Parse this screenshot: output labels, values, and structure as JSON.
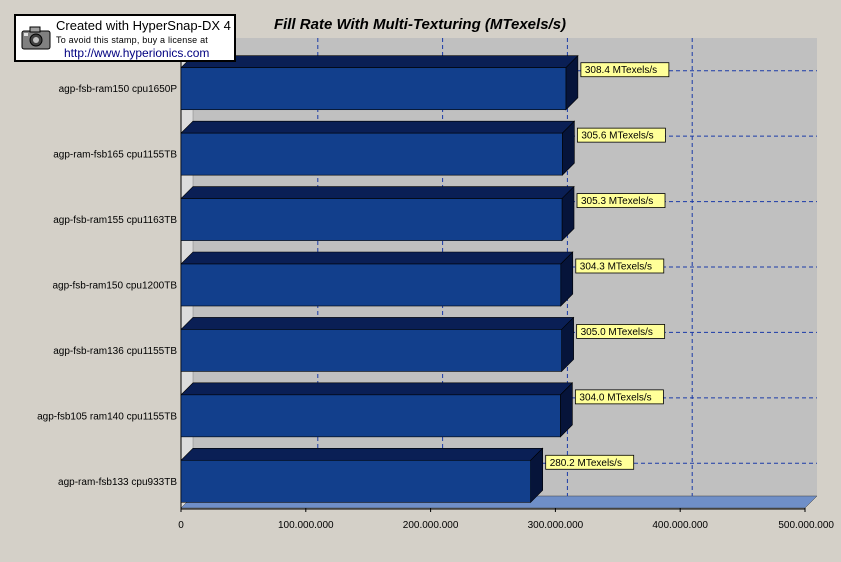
{
  "chart_data": {
    "type": "bar",
    "orientation": "horizontal",
    "title": "Fill Rate With Multi-Texturing  (MTexels/s)",
    "categories": [
      "agp-fsb-ram150 cpu1650P",
      "agp-ram-fsb165 cpu1155TB",
      "agp-fsb-ram155 cpu1163TB",
      "agp-fsb-ram150 cpu1200TB",
      "agp-fsb-ram136 cpu1155TB",
      "agp-fsb105 ram140 cpu1155TB",
      "agp-ram-fsb133 cpu933TB"
    ],
    "values": [
      308400000,
      305600000,
      305300000,
      304300000,
      305000000,
      304000000,
      280200000
    ],
    "data_labels": [
      "308.4 MTexels/s",
      "305.6 MTexels/s",
      "305.3 MTexels/s",
      "304.3 MTexels/s",
      "305.0 MTexels/s",
      "304.0 MTexels/s",
      "280.2 MTexels/s"
    ],
    "x_ticks": [
      0,
      100000000,
      200000000,
      300000000,
      400000000,
      500000000
    ],
    "x_tick_labels": [
      "0",
      "100.000.000",
      "200.000.000",
      "300.000.000",
      "400.000.000",
      "500.000.000"
    ],
    "xlim": [
      0,
      500000000
    ],
    "xlabel": "",
    "ylabel": "",
    "grid": true,
    "legend": "none",
    "colors": {
      "bar_front": "#123f8c",
      "bar_top": "#0a1f55",
      "bar_side": "#06143a",
      "plot_bg": "#c0c0c0",
      "floor": "#6f8fc8",
      "wall": "#dcdcdc",
      "grid": "#1a3aa8",
      "label_bg": "#ffff99"
    }
  },
  "stamp": {
    "line1": "Created with HyperSnap-DX 4",
    "line2": "To avoid this stamp, buy a license at",
    "line3": "http://www.hyperionics.com"
  }
}
